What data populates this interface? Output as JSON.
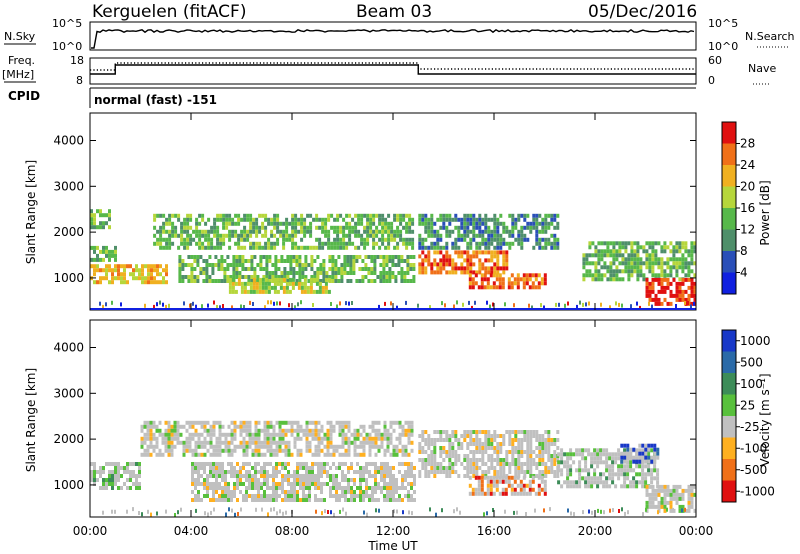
{
  "header": {
    "station": "Kerguelen (fitACF)",
    "beam": "Beam 03",
    "date": "05/Dec/2016"
  },
  "nsky_panel": {
    "left_label": "N.Sky",
    "left_ticks": [
      "10^5",
      "10^0"
    ],
    "right_label": "N.Search",
    "right_ticks": [
      "10^5",
      "10^0"
    ]
  },
  "freq_panel": {
    "left_label_1": "Freq.",
    "left_label_2": "[MHz]",
    "left_ticks": [
      "18",
      "8"
    ],
    "right_label": "Nave",
    "right_ticks": [
      "60",
      "0"
    ]
  },
  "cpid": {
    "label": "CPID",
    "mode_text": "normal (fast) -151"
  },
  "colors": {
    "power": [
      "#1020e0",
      "#2a4fb8",
      "#4f8f6a",
      "#57b84a",
      "#b6d63b",
      "#f0b020",
      "#f07018",
      "#e01010"
    ],
    "velocity": [
      "#1838c8",
      "#2a6aa8",
      "#3c8c58",
      "#58c03c",
      "#c0c0c0",
      "#ffb020",
      "#f07018",
      "#e01010"
    ],
    "ground_scatter": "#c0c0c0"
  },
  "chart_data": [
    {
      "type": "heatmap",
      "panel": "power",
      "ylabel": "Slant Range [km]",
      "y_ticks": [
        "1000",
        "2000",
        "3000",
        "4000"
      ],
      "ylim": [
        300,
        4600
      ],
      "x_ticks": [
        "00:00",
        "04:00",
        "08:00",
        "12:00",
        "16:00",
        "20:00",
        "00:00"
      ],
      "xlim": [
        0,
        24
      ],
      "colorbar_label": "Power [dB]",
      "colorbar_ticks": [
        "4",
        "8",
        "12",
        "16",
        "20",
        "24",
        "28"
      ],
      "regions": [
        {
          "t": [
            0.0,
            3.0
          ],
          "r": [
            900,
            1300
          ],
          "level": 5
        },
        {
          "t": [
            0.0,
            1.0
          ],
          "r": [
            1400,
            1700
          ],
          "level": 3
        },
        {
          "t": [
            0.0,
            0.8
          ],
          "r": [
            2100,
            2500
          ],
          "level": 3
        },
        {
          "t": [
            2.5,
            12.8
          ],
          "r": [
            1700,
            2400
          ],
          "level": 3
        },
        {
          "t": [
            3.5,
            12.8
          ],
          "r": [
            900,
            1500
          ],
          "level": 3
        },
        {
          "t": [
            5.5,
            9.5
          ],
          "r": [
            700,
            1000
          ],
          "level": 4
        },
        {
          "t": [
            13.0,
            16.5
          ],
          "r": [
            1100,
            1600
          ],
          "level": 6
        },
        {
          "t": [
            13.0,
            18.5
          ],
          "r": [
            1700,
            2400
          ],
          "level": 2
        },
        {
          "t": [
            15.0,
            18.0
          ],
          "r": [
            800,
            1100
          ],
          "level": 6
        },
        {
          "t": [
            19.5,
            24.0
          ],
          "r": [
            1000,
            1800
          ],
          "level": 3
        },
        {
          "t": [
            22.0,
            24.0
          ],
          "r": [
            400,
            1000
          ],
          "level": 7
        }
      ]
    },
    {
      "type": "heatmap",
      "panel": "velocity",
      "ylabel": "Slant Range [km]",
      "y_ticks": [
        "1000",
        "2000",
        "3000",
        "4000"
      ],
      "ylim": [
        300,
        4600
      ],
      "x_ticks": [
        "00:00",
        "04:00",
        "08:00",
        "12:00",
        "16:00",
        "20:00",
        "00:00"
      ],
      "xlim": [
        0,
        24
      ],
      "xlabel": "Time UT",
      "colorbar_label": "Velocity [m s⁻¹]",
      "colorbar_ticks": [
        "1000",
        "500",
        "100",
        "25",
        "-25",
        "-100",
        "-500",
        "-1000"
      ],
      "regions": [
        {
          "t": [
            0.0,
            2.0
          ],
          "r": [
            900,
            1500
          ],
          "level": 3
        },
        {
          "t": [
            2.0,
            12.8
          ],
          "r": [
            1700,
            2400
          ],
          "level": 4
        },
        {
          "t": [
            4.0,
            12.8
          ],
          "r": [
            700,
            1500
          ],
          "level": 4
        },
        {
          "t": [
            13.0,
            18.5
          ],
          "r": [
            1200,
            2200
          ],
          "level": 4
        },
        {
          "t": [
            15.0,
            18.0
          ],
          "r": [
            800,
            1200
          ],
          "level": 6
        },
        {
          "t": [
            18.5,
            22.5
          ],
          "r": [
            1000,
            1800
          ],
          "level": 3
        },
        {
          "t": [
            21.0,
            22.5
          ],
          "r": [
            1500,
            1900
          ],
          "level": 0
        },
        {
          "t": [
            22.0,
            24.0
          ],
          "r": [
            400,
            1000
          ],
          "level": 4
        }
      ]
    }
  ]
}
